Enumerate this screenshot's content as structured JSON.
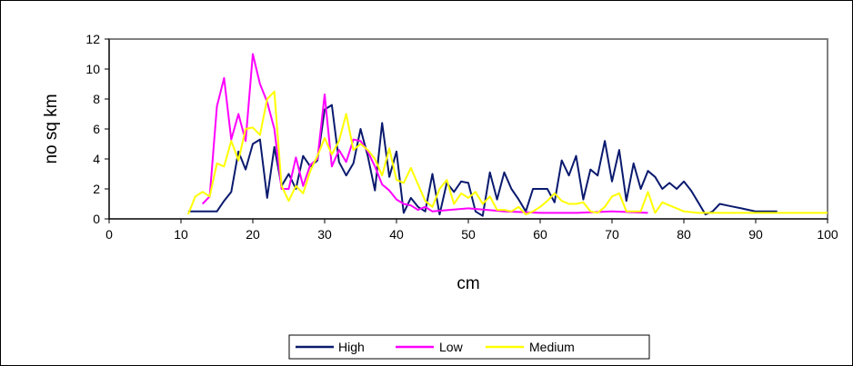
{
  "chart_data": {
    "type": "line",
    "title": "",
    "xlabel": "cm",
    "ylabel": "no sq km",
    "xlim": [
      0,
      100
    ],
    "ylim": [
      0,
      12
    ],
    "x_ticks": [
      "0",
      "10",
      "20",
      "30",
      "40",
      "50",
      "60",
      "70",
      "80",
      "90",
      "100"
    ],
    "y_ticks": [
      "0",
      "2",
      "4",
      "6",
      "8",
      "10",
      "12"
    ],
    "grid": false,
    "legend_position": "bottom",
    "colors": {
      "High": "#0a1a6e",
      "Low": "#ff00ff",
      "Medium": "#ffff00",
      "plot_border": "#808080",
      "axis": "#000000"
    },
    "series": [
      {
        "name": "High",
        "x": [
          11,
          12,
          13,
          14,
          15,
          16,
          17,
          18,
          19,
          20,
          21,
          22,
          23,
          24,
          25,
          26,
          27,
          28,
          29,
          30,
          31,
          32,
          33,
          34,
          35,
          36,
          37,
          38,
          39,
          40,
          41,
          42,
          43,
          44,
          45,
          46,
          47,
          48,
          49,
          50,
          51,
          52,
          53,
          54,
          55,
          56,
          57,
          58,
          59,
          60,
          61,
          62,
          63,
          64,
          65,
          66,
          67,
          68,
          69,
          70,
          71,
          72,
          73,
          74,
          75,
          76,
          77,
          78,
          79,
          80,
          81,
          82,
          83,
          84,
          85,
          86,
          87,
          88,
          89,
          90,
          91,
          92,
          93
        ],
        "y": [
          0.5,
          0.5,
          0.5,
          0.5,
          0.5,
          1.2,
          1.8,
          4.5,
          3.3,
          5.0,
          5.3,
          1.4,
          4.8,
          2.2,
          3.0,
          2.0,
          4.2,
          3.5,
          3.9,
          7.3,
          7.6,
          3.8,
          2.9,
          3.7,
          6.0,
          4.2,
          1.9,
          6.4,
          2.8,
          4.5,
          0.4,
          1.4,
          0.8,
          0.5,
          3.0,
          0.3,
          2.4,
          1.8,
          2.5,
          2.4,
          0.5,
          0.2,
          3.1,
          1.3,
          3.1,
          2.0,
          1.3,
          0.5,
          2.0,
          2.0,
          2.0,
          1.1,
          3.9,
          2.9,
          4.2,
          1.3,
          3.3,
          2.9,
          5.2,
          2.5,
          4.6,
          1.2,
          3.7,
          2.0,
          3.2,
          2.8,
          2.0,
          2.4,
          2.0,
          2.5,
          1.9,
          1.1,
          0.3,
          0.5,
          1.0,
          0.9,
          0.8,
          0.7,
          0.6,
          0.5,
          0.5,
          0.5,
          0.5
        ]
      },
      {
        "name": "Low",
        "x": [
          13,
          14,
          15,
          16,
          17,
          18,
          19,
          20,
          21,
          22,
          23,
          24,
          25,
          26,
          27,
          28,
          29,
          30,
          31,
          32,
          33,
          34,
          35,
          36,
          37,
          38,
          39,
          40,
          41,
          42,
          43,
          44,
          45,
          50,
          55,
          60,
          65,
          70,
          75
        ],
        "y": [
          1.0,
          1.5,
          7.5,
          9.4,
          5.3,
          7.0,
          5.2,
          11.0,
          9.0,
          7.8,
          6.0,
          2.0,
          2.0,
          4.1,
          2.2,
          3.6,
          4.0,
          8.3,
          3.5,
          4.6,
          3.8,
          5.3,
          5.2,
          4.5,
          3.5,
          2.3,
          1.9,
          1.3,
          1.0,
          0.9,
          0.6,
          0.8,
          0.5,
          0.7,
          0.5,
          0.4,
          0.4,
          0.5,
          0.4
        ]
      },
      {
        "name": "Medium",
        "x": [
          11,
          12,
          13,
          14,
          15,
          16,
          17,
          18,
          19,
          20,
          21,
          22,
          23,
          24,
          25,
          26,
          27,
          28,
          29,
          30,
          31,
          32,
          33,
          34,
          35,
          36,
          37,
          38,
          39,
          40,
          41,
          42,
          43,
          44,
          45,
          46,
          47,
          48,
          49,
          50,
          51,
          52,
          53,
          54,
          55,
          56,
          57,
          58,
          59,
          60,
          61,
          62,
          63,
          64,
          65,
          66,
          67,
          68,
          69,
          70,
          71,
          72,
          73,
          74,
          75,
          76,
          77,
          78,
          79,
          80,
          82,
          85,
          90,
          95,
          100
        ],
        "y": [
          0.3,
          1.5,
          1.8,
          1.5,
          3.7,
          3.5,
          5.2,
          3.9,
          6.0,
          6.1,
          5.6,
          8.0,
          8.5,
          2.2,
          1.2,
          2.2,
          1.7,
          3.2,
          4.2,
          5.4,
          4.3,
          5.2,
          7.0,
          4.6,
          5.0,
          4.6,
          4.0,
          2.9,
          4.7,
          2.6,
          2.4,
          3.4,
          2.3,
          1.2,
          0.8,
          2.0,
          2.6,
          1.0,
          1.7,
          1.4,
          1.8,
          1.0,
          1.5,
          0.6,
          0.6,
          0.5,
          0.8,
          0.3,
          0.5,
          0.8,
          1.2,
          1.7,
          1.2,
          1.0,
          1.0,
          1.1,
          0.5,
          0.4,
          0.8,
          1.5,
          1.7,
          0.5,
          0.5,
          0.5,
          1.8,
          0.4,
          1.1,
          0.9,
          0.7,
          0.5,
          0.4,
          0.4,
          0.4,
          0.4,
          0.4
        ]
      }
    ]
  }
}
